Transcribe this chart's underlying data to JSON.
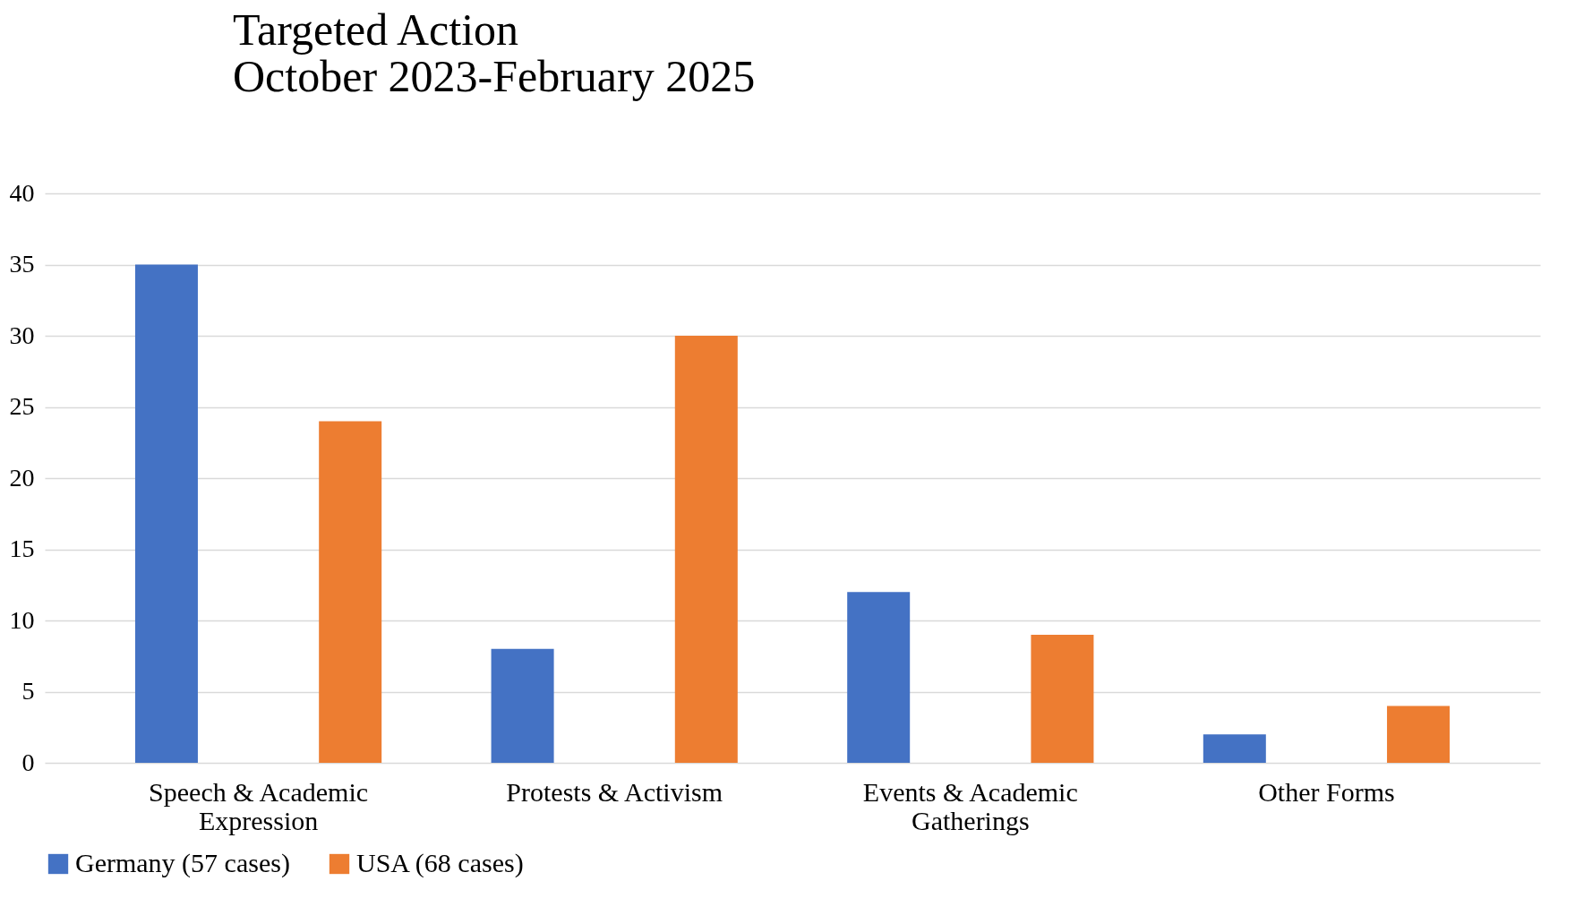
{
  "chart_data": {
    "type": "bar",
    "title": [
      "Targeted Action",
      "October 2023-February 2025"
    ],
    "categories": [
      "Speech & Academic Expression",
      "Protests & Activism",
      "Events & Academic Gatherings",
      "Other Forms"
    ],
    "series": [
      {
        "name": "Germany (57 cases)",
        "color": "#4472c4",
        "values": [
          35,
          8,
          12,
          2
        ]
      },
      {
        "name": "USA (68 cases)",
        "color": "#ed7d31",
        "values": [
          24,
          30,
          9,
          4
        ]
      }
    ],
    "ylim": [
      0,
      40
    ],
    "yticks": [
      0,
      5,
      10,
      15,
      20,
      25,
      30,
      35,
      40
    ],
    "grid": "y",
    "legend": "bottom"
  }
}
